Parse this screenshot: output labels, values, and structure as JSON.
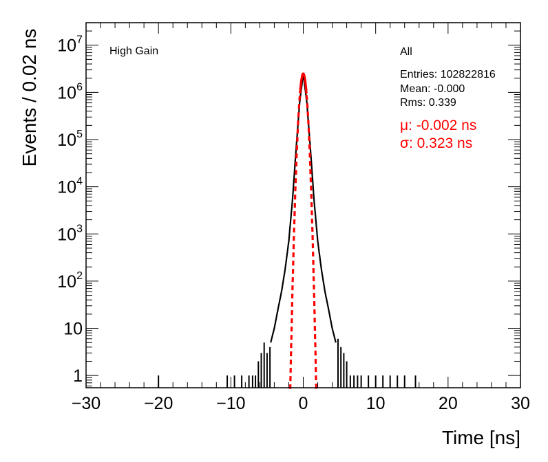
{
  "chart_data": {
    "type": "histogram",
    "title": "",
    "xlabel": "Time [ns]",
    "ylabel": "Events / 0.02 ns",
    "xlim": [
      -30,
      30
    ],
    "ylim": [
      0.55,
      30000000
    ],
    "y_scale": "log",
    "grid": false,
    "x_ticks": [
      -30,
      -20,
      -10,
      0,
      10,
      20,
      30
    ],
    "x_tick_labels": [
      "−30",
      "−20",
      "−10",
      "0",
      "10",
      "20",
      "30"
    ],
    "y_ticks": [
      1,
      10,
      100,
      1000,
      10000,
      100000,
      1000000,
      10000000
    ],
    "y_tick_labels": [
      {
        "base": "1",
        "exp": ""
      },
      {
        "base": "10",
        "exp": ""
      },
      {
        "base": "10",
        "exp": "2"
      },
      {
        "base": "10",
        "exp": "3"
      },
      {
        "base": "10",
        "exp": "4"
      },
      {
        "base": "10",
        "exp": "5"
      },
      {
        "base": "10",
        "exp": "6"
      },
      {
        "base": "10",
        "exp": "7"
      }
    ],
    "annotation_left": "High Gain",
    "stats": {
      "name": "All",
      "entries": "Entries: 102822816",
      "mean": "Mean: -0.000",
      "rms": "Rms: 0.339"
    },
    "fit": {
      "mu_label": "μ: -0.002 ns",
      "sigma_label": "σ: 0.323 ns",
      "mu": -0.002,
      "sigma": 0.323,
      "amplitude": 2500000,
      "color": "#ff0000"
    },
    "series": [
      {
        "name": "All",
        "color": "#000000",
        "core": [
          [
            -4.5,
            5
          ],
          [
            -4.0,
            10
          ],
          [
            -3.5,
            25
          ],
          [
            -3.0,
            60
          ],
          [
            -2.5,
            180
          ],
          [
            -2.0,
            700
          ],
          [
            -1.5,
            5000
          ],
          [
            -1.0,
            60000
          ],
          [
            -0.5,
            600000
          ],
          [
            0.0,
            2500000
          ],
          [
            0.5,
            600000
          ],
          [
            1.0,
            60000
          ],
          [
            1.5,
            5000
          ],
          [
            2.0,
            700
          ],
          [
            2.5,
            180
          ],
          [
            3.0,
            60
          ],
          [
            3.5,
            25
          ],
          [
            4.0,
            10
          ],
          [
            4.5,
            5
          ]
        ],
        "left_tail": [
          [
            -6.2,
            2
          ],
          [
            -5.8,
            3
          ],
          [
            -5.4,
            5
          ],
          [
            -5.0,
            3
          ],
          [
            -4.6,
            4
          ],
          [
            -6.6,
            1
          ],
          [
            -7.0,
            1
          ],
          [
            -7.5,
            1
          ],
          [
            -8.5,
            1
          ],
          [
            -9.5,
            1
          ],
          [
            -10.5,
            1
          ],
          [
            -20.0,
            1
          ]
        ],
        "right_tail": [
          [
            4.8,
            6
          ],
          [
            5.2,
            4
          ],
          [
            5.6,
            3
          ],
          [
            6.0,
            2
          ],
          [
            6.5,
            1
          ],
          [
            7.0,
            1
          ],
          [
            7.5,
            1
          ],
          [
            8.0,
            1
          ],
          [
            9.0,
            1
          ],
          [
            10.0,
            1
          ],
          [
            11.0,
            1
          ],
          [
            12.0,
            1
          ],
          [
            13.0,
            1
          ],
          [
            14.0,
            1
          ],
          [
            15.5,
            1
          ]
        ]
      }
    ]
  }
}
